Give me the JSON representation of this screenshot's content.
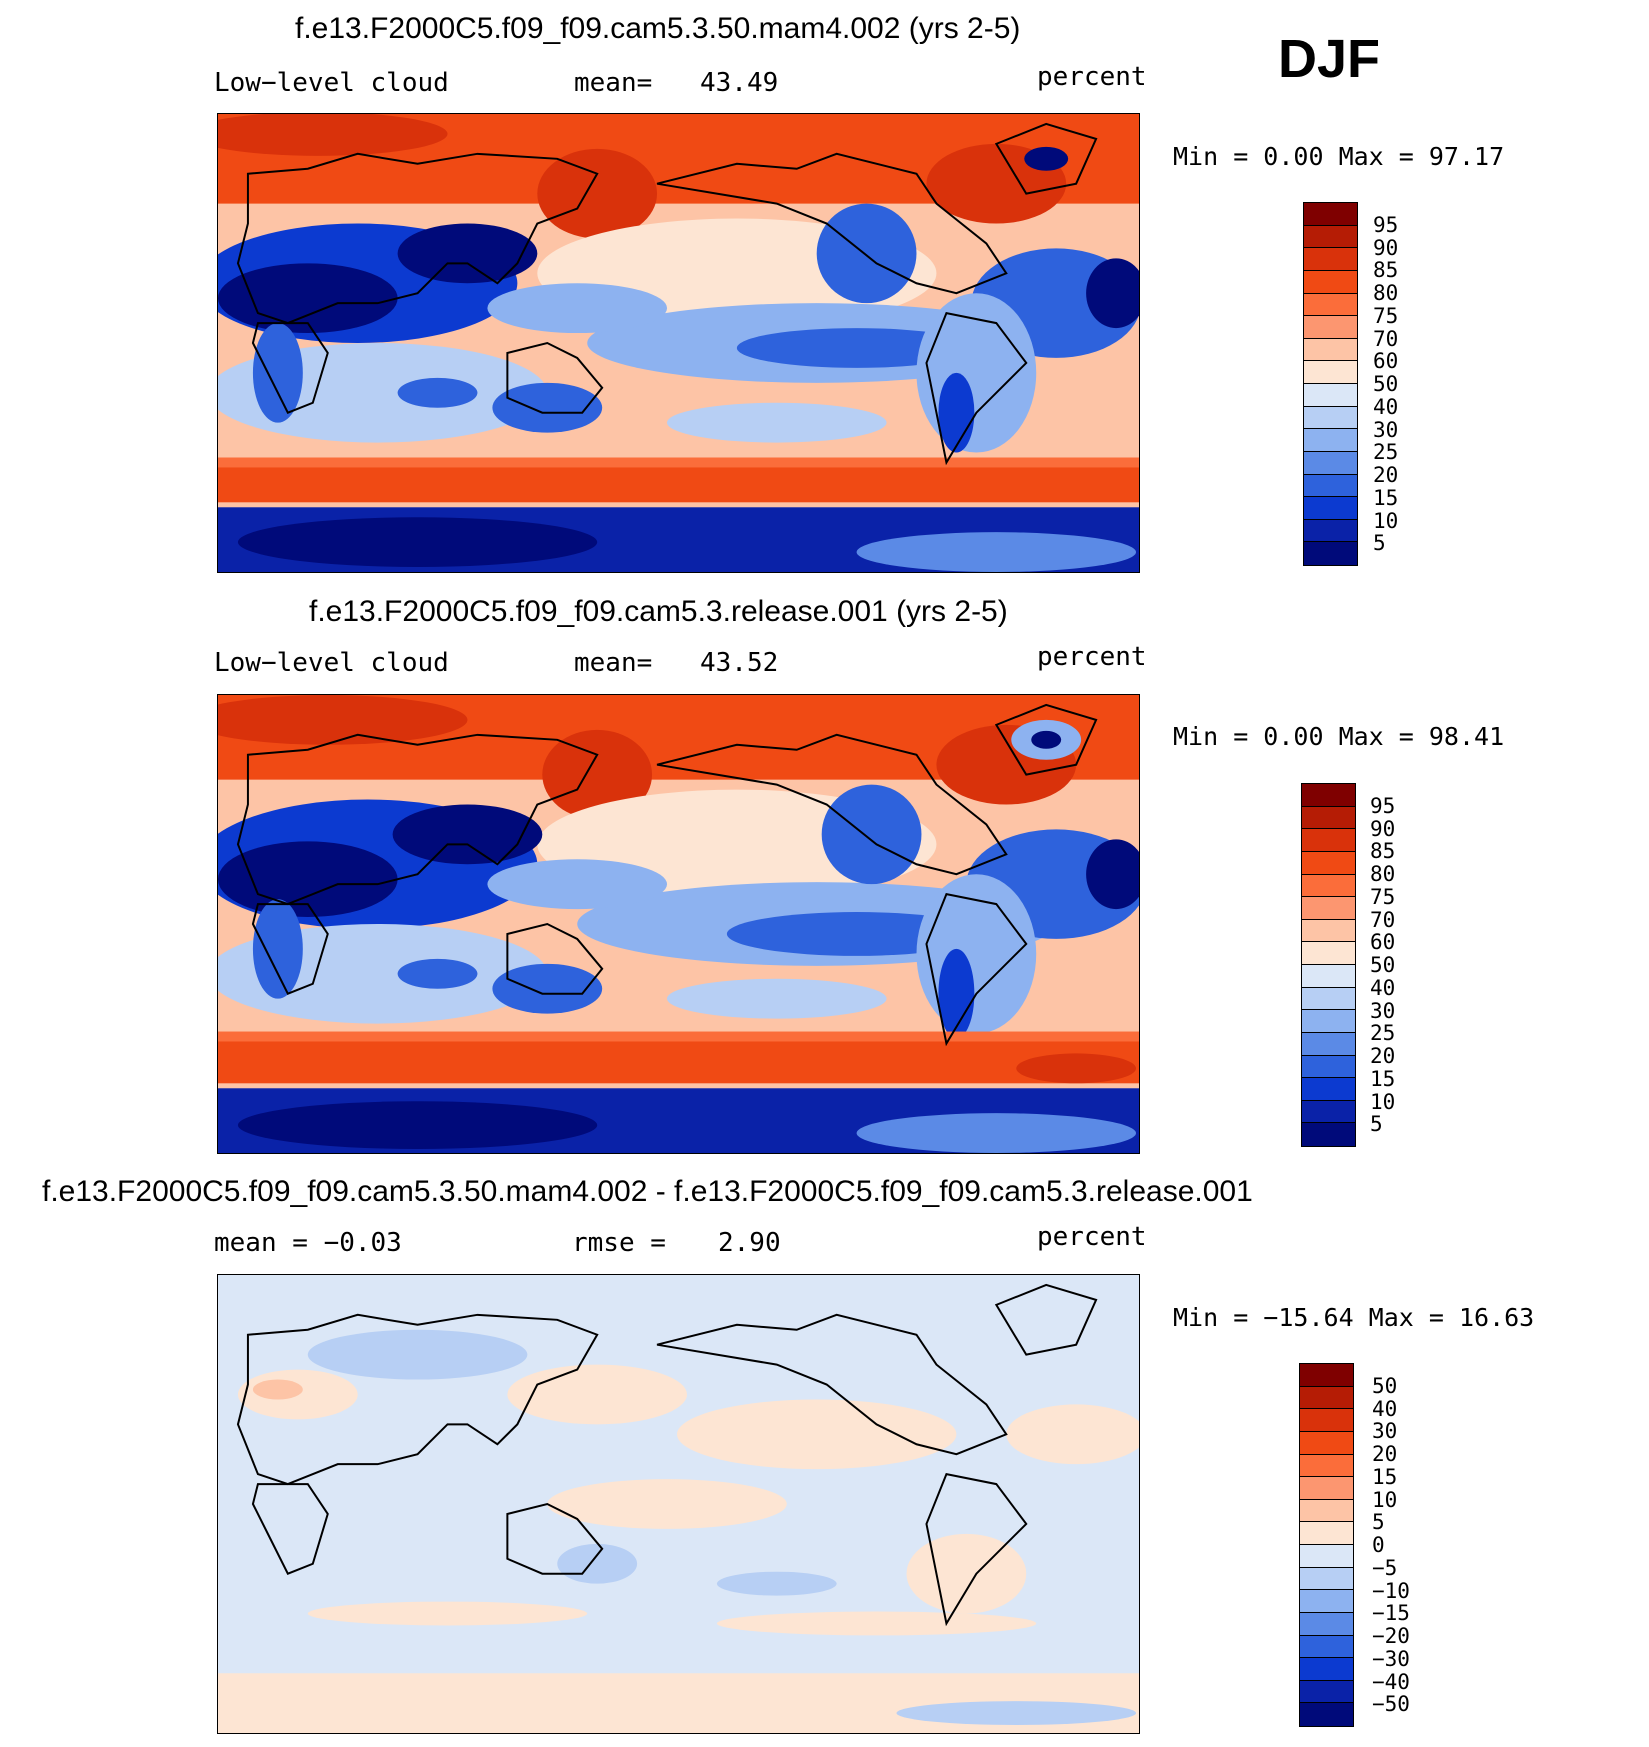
{
  "season": "DJF",
  "panels": [
    {
      "title": "f.e13.F2000C5.f09_f09.cam5.3.50.mam4.002 (yrs 2-5)",
      "left_label": "Low−level cloud",
      "mid_label": "mean=",
      "mid_value": "43.49",
      "units": "percent",
      "minmax": "Min =    0.00 Max =   97.17",
      "kind": "abs"
    },
    {
      "title": "f.e13.F2000C5.f09_f09.cam5.3.release.001 (yrs 2-5)",
      "left_label": "Low−level cloud",
      "mid_label": "mean=",
      "mid_value": "43.52",
      "units": "percent",
      "minmax": "Min =    0.00 Max =   98.41",
      "kind": "abs"
    },
    {
      "title": "f.e13.F2000C5.f09_f09.cam5.3.50.mam4.002 - f.e13.F2000C5.f09_f09.cam5.3.release.001",
      "left_label": "mean =   −0.03",
      "mid_label": "rmse =",
      "mid_value": "2.90",
      "units": "percent",
      "minmax": "Min = −15.64 Max =   16.63",
      "kind": "diff"
    }
  ],
  "colorbar_abs": {
    "labels": [
      "95",
      "90",
      "85",
      "80",
      "75",
      "70",
      "60",
      "50",
      "40",
      "30",
      "25",
      "20",
      "15",
      "10",
      "5"
    ],
    "colors": [
      "#7f0000",
      "#b51c05",
      "#d9320b",
      "#f04a14",
      "#fb6d3a",
      "#fc9670",
      "#fdc4a6",
      "#fde5d3",
      "#dbe7f7",
      "#b7cff4",
      "#8db2f0",
      "#5b8ae6",
      "#2e62dc",
      "#0c3ad0",
      "#0a22a8",
      "#000a7a"
    ]
  },
  "colorbar_diff": {
    "labels": [
      "50",
      "40",
      "30",
      "20",
      "15",
      "10",
      "5",
      "0",
      "−5",
      "−10",
      "−15",
      "−20",
      "−30",
      "−40",
      "−50"
    ],
    "colors": [
      "#7f0000",
      "#b51c05",
      "#d9320b",
      "#f04a14",
      "#fb6d3a",
      "#fc9670",
      "#fdc4a6",
      "#fde5d3",
      "#dbe7f7",
      "#b7cff4",
      "#8db2f0",
      "#5b8ae6",
      "#2e62dc",
      "#0c3ad0",
      "#0a22a8",
      "#000a7a"
    ]
  }
}
